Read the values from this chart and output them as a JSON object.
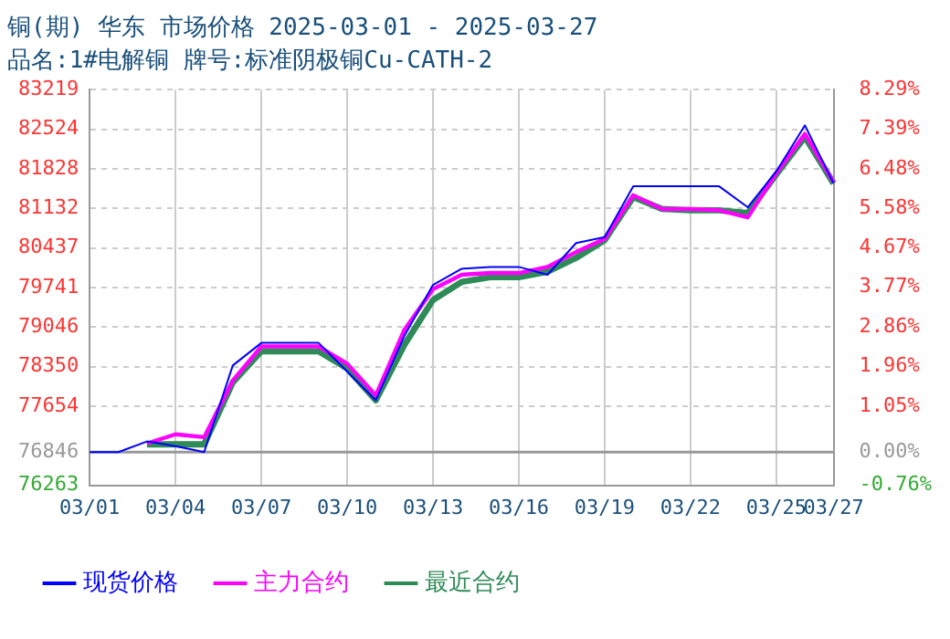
{
  "chart_data": {
    "type": "line",
    "title": "铜(期) 华东 市场价格 2025-03-01 - 2025-03-27",
    "subtitle": "品名:1#电解铜 牌号:标准阴极铜Cu-CATH-2",
    "categories": [
      "03/01",
      null,
      null,
      "03/04",
      null,
      null,
      "03/07",
      null,
      null,
      "03/10",
      null,
      null,
      "03/13",
      null,
      null,
      "03/16",
      null,
      null,
      "03/19",
      null,
      null,
      "03/22",
      null,
      null,
      "03/25",
      null,
      "03/27"
    ],
    "series": [
      {
        "name": "现货价格",
        "color": "#0000ff",
        "values": [
          76846,
          76846,
          77034,
          76952,
          76846,
          78370,
          78768,
          78768,
          78768,
          78263,
          77759,
          78894,
          79789,
          80072,
          80104,
          80104,
          79966,
          80524,
          80628,
          81522,
          81522,
          81522,
          81522,
          81154,
          81785,
          82594,
          81574
        ]
      },
      {
        "name": "主力合约",
        "color": "#ff00ff",
        "values": [
          null,
          null,
          76999,
          77160,
          77109,
          78105,
          78705,
          78705,
          78705,
          78402,
          77844,
          79000,
          79713,
          79966,
          79997,
          79997,
          80104,
          80366,
          80596,
          81365,
          81123,
          81123,
          81101,
          80975,
          81754,
          82444,
          81595
        ]
      },
      {
        "name": "最近合约",
        "color": "#2e8b57",
        "values": [
          null,
          null,
          76983,
          76983,
          76983,
          78073,
          78620,
          78620,
          78620,
          78317,
          77759,
          78736,
          79524,
          79840,
          79925,
          79925,
          80020,
          80262,
          80576,
          81334,
          81123,
          81101,
          81101,
          81050,
          81731,
          82392,
          81574
        ]
      }
    ],
    "ylim": [
      76263,
      83219
    ],
    "yticks": [
      76263,
      76846,
      77654,
      78350,
      79046,
      79741,
      80437,
      81132,
      81828,
      82524,
      83219
    ],
    "y2lim": [
      -0.76,
      8.29
    ],
    "y2ticks": [
      {
        "value": -0.76,
        "label": "-0.76%"
      },
      {
        "value": 0,
        "label": "0.00%"
      },
      {
        "value": 1.05,
        "label": "1.05%"
      },
      {
        "value": 1.96,
        "label": "1.96%"
      },
      {
        "value": 2.86,
        "label": "2.86%"
      },
      {
        "value": 3.77,
        "label": "3.77%"
      },
      {
        "value": 4.67,
        "label": "4.67%"
      },
      {
        "value": 5.58,
        "label": "5.58%"
      },
      {
        "value": 6.48,
        "label": "6.48%"
      },
      {
        "value": 7.39,
        "label": "7.39%"
      },
      {
        "value": 8.29,
        "label": "8.29%"
      }
    ],
    "ref_lines": [
      {
        "axis": "y",
        "value": 76846,
        "color": "#999999"
      }
    ],
    "grid": true,
    "legend": "bottom",
    "marker": "none",
    "line_style": "solid"
  }
}
